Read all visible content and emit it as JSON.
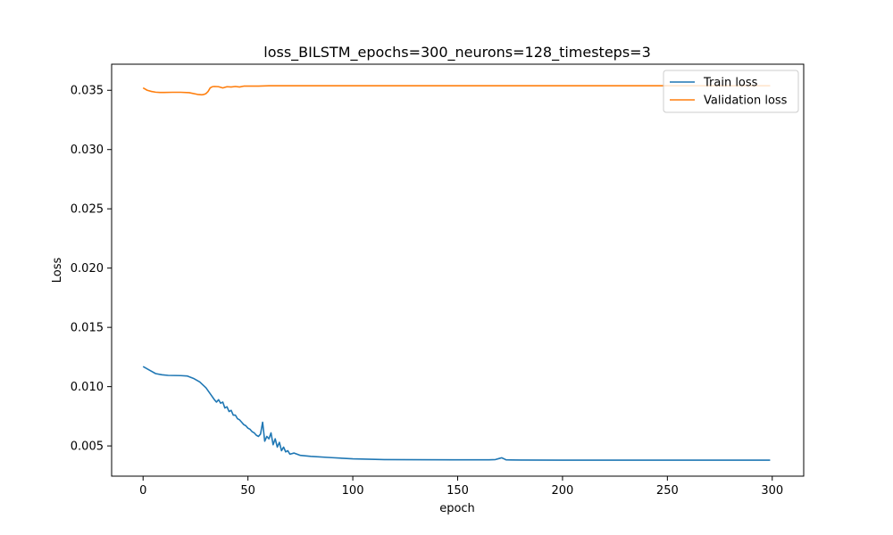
{
  "chart_data": {
    "type": "line",
    "title": "loss_BILSTM_epochs=300_neurons=128_timesteps=3",
    "xlabel": "epoch",
    "ylabel": "Loss",
    "xlim": [
      -15,
      315
    ],
    "ylim": [
      0.00245,
      0.0372
    ],
    "xticks": [
      0,
      50,
      100,
      150,
      200,
      250,
      300
    ],
    "xtick_labels": [
      "0",
      "50",
      "100",
      "150",
      "200",
      "250",
      "300"
    ],
    "yticks": [
      0.005,
      0.01,
      0.015,
      0.02,
      0.025,
      0.03,
      0.035
    ],
    "ytick_labels": [
      "0.005",
      "0.010",
      "0.015",
      "0.020",
      "0.025",
      "0.030",
      "0.035"
    ],
    "grid": false,
    "legend_position": "top-right",
    "series": [
      {
        "name": "Train loss",
        "color": "#1f77b4",
        "x": [
          0,
          3,
          6,
          9,
          12,
          15,
          18,
          21,
          24,
          27,
          30,
          32,
          34,
          35,
          36,
          37,
          38,
          39,
          40,
          41,
          42,
          43,
          44,
          45,
          46,
          47,
          48,
          49,
          50,
          51,
          52,
          53,
          54,
          55,
          56,
          57,
          58,
          59,
          60,
          61,
          62,
          63,
          64,
          65,
          66,
          67,
          68,
          69,
          70,
          72,
          75,
          80,
          90,
          100,
          115,
          130,
          150,
          165,
          168,
          170,
          171,
          172,
          173,
          175,
          180,
          200,
          250,
          299
        ],
        "y": [
          0.0117,
          0.0114,
          0.0111,
          0.011,
          0.01095,
          0.01094,
          0.01093,
          0.0109,
          0.0107,
          0.0104,
          0.0099,
          0.0094,
          0.0089,
          0.0087,
          0.0089,
          0.0086,
          0.0087,
          0.0082,
          0.0083,
          0.0079,
          0.008,
          0.0076,
          0.0076,
          0.0073,
          0.0072,
          0.007,
          0.0068,
          0.0067,
          0.0065,
          0.0064,
          0.0062,
          0.0061,
          0.0059,
          0.0058,
          0.006,
          0.007,
          0.0054,
          0.0058,
          0.0056,
          0.0061,
          0.0051,
          0.0056,
          0.0049,
          0.0053,
          0.0046,
          0.0049,
          0.0045,
          0.0046,
          0.0043,
          0.0044,
          0.0042,
          0.00412,
          0.00401,
          0.00391,
          0.00385,
          0.00384,
          0.00383,
          0.00383,
          0.00385,
          0.00395,
          0.004,
          0.00392,
          0.00383,
          0.00382,
          0.00381,
          0.0038,
          0.0038,
          0.0038
        ]
      },
      {
        "name": "Validation loss",
        "color": "#ff7f0e",
        "x": [
          0,
          2,
          4,
          6,
          8,
          10,
          14,
          18,
          22,
          26,
          28,
          29,
          30,
          31,
          32,
          33,
          34,
          36,
          38,
          40,
          42,
          44,
          46,
          48,
          50,
          55,
          60,
          80,
          100,
          150,
          200,
          250,
          299
        ],
        "y": [
          0.0352,
          0.035,
          0.0349,
          0.03484,
          0.03482,
          0.03482,
          0.03483,
          0.03483,
          0.0348,
          0.03465,
          0.03462,
          0.03465,
          0.03472,
          0.0349,
          0.0352,
          0.0353,
          0.03532,
          0.0353,
          0.0352,
          0.0353,
          0.03528,
          0.03532,
          0.03528,
          0.03535,
          0.03535,
          0.03535,
          0.03538,
          0.03538,
          0.03538,
          0.03538,
          0.03538,
          0.03538,
          0.03538
        ]
      }
    ]
  }
}
